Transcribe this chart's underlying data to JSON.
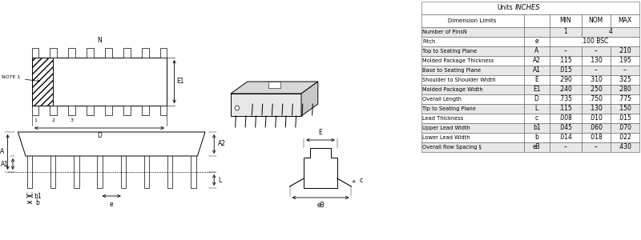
{
  "table_rows": [
    [
      "Number of PinsN",
      "",
      "1",
      "4",
      ""
    ],
    [
      "Pitch",
      "e",
      "",
      ".100 BSC",
      ""
    ],
    [
      "Top to Seating Plane",
      "A",
      "–",
      "–",
      ".210"
    ],
    [
      "Molded Package Thickness",
      "A2",
      ".115",
      ".130",
      ".195"
    ],
    [
      "Base to Seating Plane",
      "A1",
      ".015",
      "–",
      "–"
    ],
    [
      "Shoulder to Shoulder Width",
      "E",
      ".290",
      ".310",
      ".325"
    ],
    [
      "Molded Package Width",
      "E1",
      ".240",
      ".250",
      ".280"
    ],
    [
      "Overall Length",
      "D",
      ".735",
      ".750",
      ".775"
    ],
    [
      "Tip to Seating Plane",
      "L",
      ".115",
      ".130",
      ".150"
    ],
    [
      "Lead Thickness",
      "c",
      ".008",
      ".010",
      ".015"
    ],
    [
      "Upper Lead Width",
      "b1",
      ".045",
      ".060",
      ".070"
    ],
    [
      "Lower Lead Width",
      "b",
      ".014",
      ".018",
      ".022"
    ],
    [
      "Overall Row Spacing §",
      "eB",
      "–",
      "–",
      ".430"
    ]
  ]
}
